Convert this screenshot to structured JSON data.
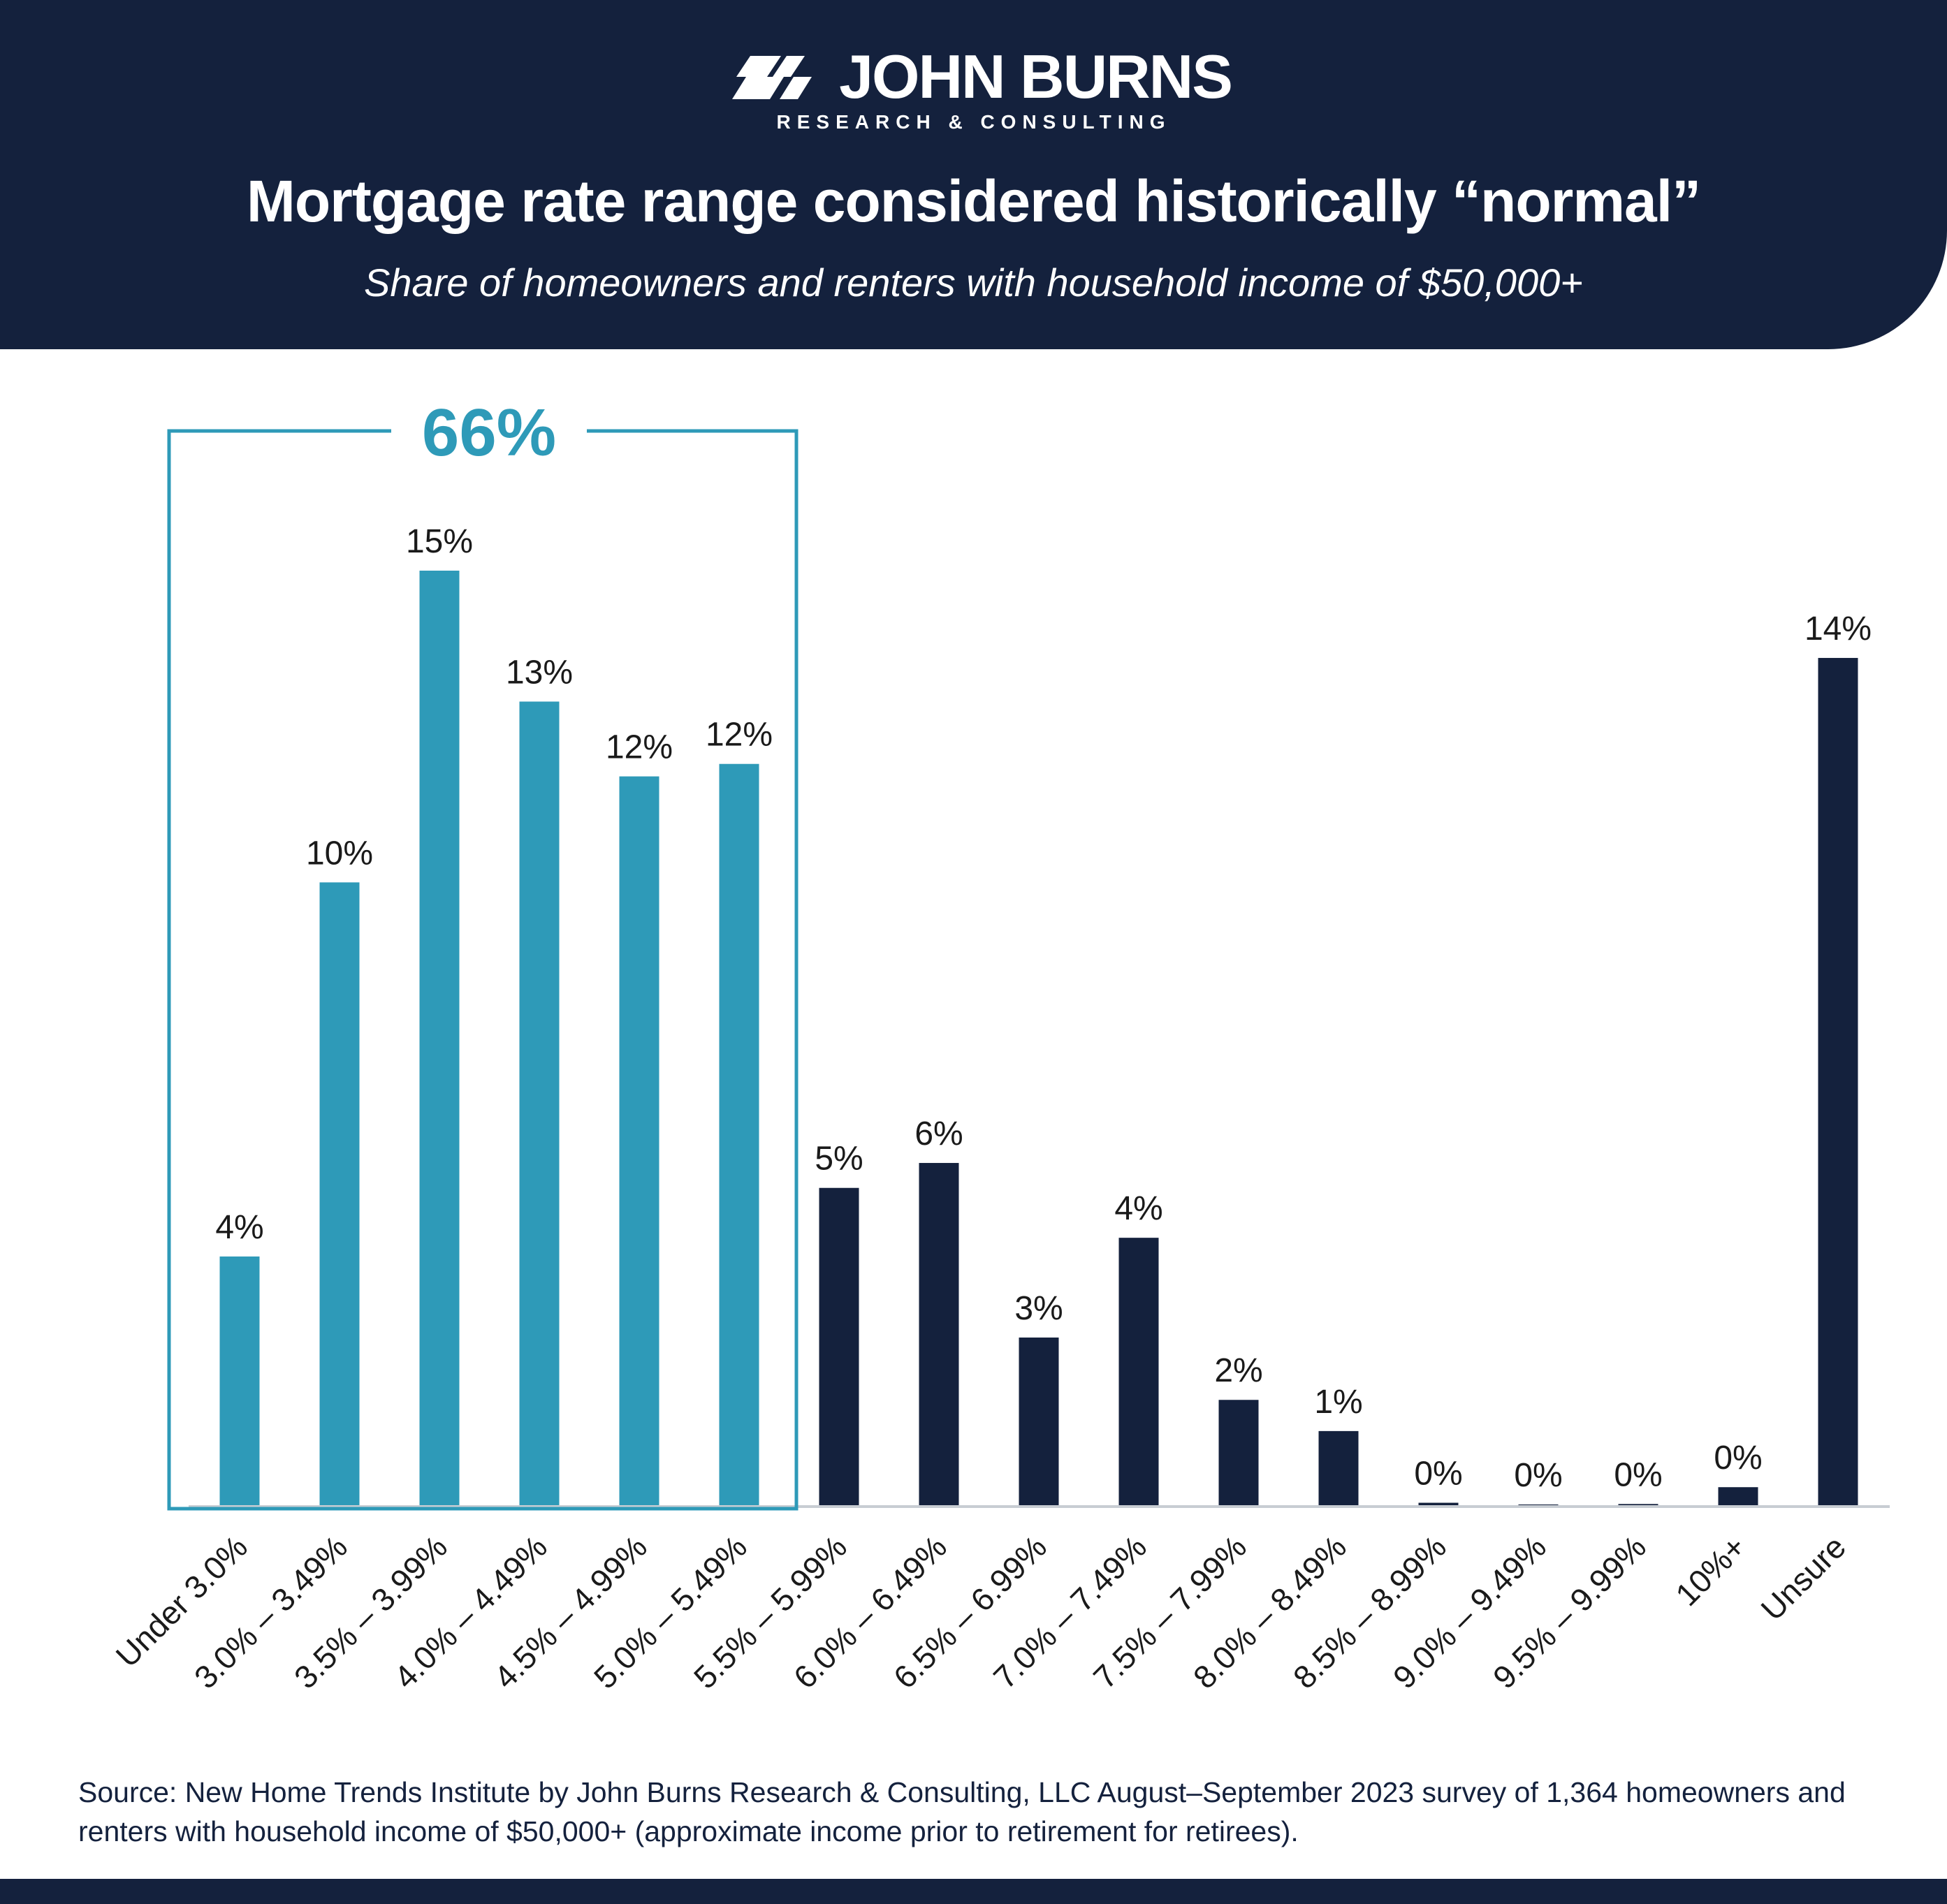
{
  "brand": {
    "name": "JOHN BURNS",
    "tagline": "RESEARCH & CONSULTING"
  },
  "colors": {
    "navy": "#14213d",
    "teal": "#2e9ab8",
    "axis": "#c8cdd3"
  },
  "chart_data": {
    "type": "bar",
    "title": "Mortgage rate range considered historically “normal”",
    "subtitle": "Share of homeowners and renters with household income of $50,000+",
    "categories": [
      "Under 3.0%",
      "3.0% – 3.49%",
      "3.5% – 3.99%",
      "4.0% – 4.49%",
      "4.5% – 4.99%",
      "5.0% – 5.49%",
      "5.5% – 5.99%",
      "6.0% – 6.49%",
      "6.5% – 6.99%",
      "7.0% – 7.49%",
      "7.5% – 7.99%",
      "8.0% – 8.49%",
      "8.5% – 8.99%",
      "9.0% – 9.49%",
      "9.5% – 9.99%",
      "10%+",
      "Unsure"
    ],
    "values": [
      4.0,
      10.0,
      15.0,
      12.9,
      11.7,
      11.9,
      5.1,
      5.5,
      2.7,
      4.3,
      1.7,
      1.2,
      0.05,
      0.0,
      0.03,
      0.3,
      13.6
    ],
    "data_labels": [
      "4%",
      "10%",
      "15%",
      "13%",
      "12%",
      "12%",
      "5%",
      "6%",
      "3%",
      "4%",
      "2%",
      "1%",
      "0%",
      "0%",
      "0%",
      "0%",
      "14%"
    ],
    "highlight": {
      "from_index": 0,
      "to_index": 5,
      "label": "66%"
    },
    "ylim": [
      0,
      15
    ],
    "grid": false,
    "legend": "none"
  },
  "source": "Source: New Home Trends Institute by John Burns Research & Consulting, LLC August–September 2023 survey of 1,364 homeowners and renters with household income of $50,000+ (approximate income prior to retirement for retirees)."
}
